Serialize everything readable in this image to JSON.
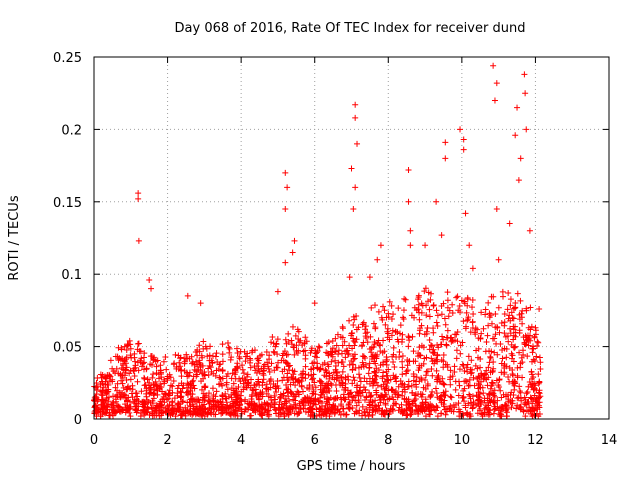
{
  "chart_data": {
    "type": "scatter",
    "title": "Day 068 of 2016, Rate Of TEC Index for receiver dund",
    "xlabel": "GPS time / hours",
    "ylabel": "ROTI / TECUs",
    "xlim": [
      0,
      14
    ],
    "ylim": [
      0,
      0.25
    ],
    "xticks": [
      "0",
      "2",
      "4",
      "6",
      "8",
      "10",
      "12",
      "14"
    ],
    "yticks": [
      "0",
      "0.05",
      "0.1",
      "0.15",
      "0.2",
      "0.25"
    ],
    "grid": true,
    "marker": "+",
    "series_color": "#ff0000",
    "notable_points": [
      {
        "x": 1.2,
        "y": 0.156
      },
      {
        "x": 1.2,
        "y": 0.152
      },
      {
        "x": 1.22,
        "y": 0.123
      },
      {
        "x": 1.5,
        "y": 0.096
      },
      {
        "x": 1.55,
        "y": 0.09
      },
      {
        "x": 2.55,
        "y": 0.085
      },
      {
        "x": 2.9,
        "y": 0.08
      },
      {
        "x": 5.0,
        "y": 0.088
      },
      {
        "x": 5.2,
        "y": 0.17
      },
      {
        "x": 5.25,
        "y": 0.16
      },
      {
        "x": 5.2,
        "y": 0.145
      },
      {
        "x": 5.45,
        "y": 0.123
      },
      {
        "x": 5.4,
        "y": 0.115
      },
      {
        "x": 5.2,
        "y": 0.108
      },
      {
        "x": 6.0,
        "y": 0.08
      },
      {
        "x": 6.95,
        "y": 0.098
      },
      {
        "x": 7.1,
        "y": 0.217
      },
      {
        "x": 7.1,
        "y": 0.208
      },
      {
        "x": 7.15,
        "y": 0.19
      },
      {
        "x": 7.0,
        "y": 0.173
      },
      {
        "x": 7.1,
        "y": 0.16
      },
      {
        "x": 7.05,
        "y": 0.145
      },
      {
        "x": 7.5,
        "y": 0.098
      },
      {
        "x": 7.8,
        "y": 0.12
      },
      {
        "x": 7.7,
        "y": 0.11
      },
      {
        "x": 8.55,
        "y": 0.172
      },
      {
        "x": 8.55,
        "y": 0.15
      },
      {
        "x": 8.6,
        "y": 0.13
      },
      {
        "x": 8.6,
        "y": 0.12
      },
      {
        "x": 9.0,
        "y": 0.12
      },
      {
        "x": 9.3,
        "y": 0.15
      },
      {
        "x": 9.45,
        "y": 0.127
      },
      {
        "x": 9.55,
        "y": 0.191
      },
      {
        "x": 9.55,
        "y": 0.18
      },
      {
        "x": 9.95,
        "y": 0.2
      },
      {
        "x": 10.05,
        "y": 0.193
      },
      {
        "x": 10.05,
        "y": 0.186
      },
      {
        "x": 10.1,
        "y": 0.142
      },
      {
        "x": 10.2,
        "y": 0.12
      },
      {
        "x": 10.3,
        "y": 0.104
      },
      {
        "x": 10.85,
        "y": 0.244
      },
      {
        "x": 10.95,
        "y": 0.232
      },
      {
        "x": 10.9,
        "y": 0.22
      },
      {
        "x": 10.95,
        "y": 0.145
      },
      {
        "x": 11.0,
        "y": 0.11
      },
      {
        "x": 11.3,
        "y": 0.135
      },
      {
        "x": 11.45,
        "y": 0.196
      },
      {
        "x": 11.5,
        "y": 0.215
      },
      {
        "x": 11.55,
        "y": 0.165
      },
      {
        "x": 11.6,
        "y": 0.18
      },
      {
        "x": 11.7,
        "y": 0.238
      },
      {
        "x": 11.72,
        "y": 0.225
      },
      {
        "x": 11.75,
        "y": 0.2
      },
      {
        "x": 11.85,
        "y": 0.13
      },
      {
        "x": 12.1,
        "y": 0.076
      }
    ],
    "activity_envelope": {
      "description": "approximate upper envelope of the dense point cloud (hours, ROTI)",
      "x": [
        0,
        0.5,
        1.0,
        1.5,
        2.0,
        2.5,
        3.0,
        3.5,
        4.0,
        4.5,
        5.0,
        5.5,
        6.0,
        6.5,
        7.0,
        7.5,
        8.0,
        8.5,
        9.0,
        9.5,
        10.0,
        10.5,
        11.0,
        11.5,
        12.0,
        12.15
      ],
      "upper": [
        0.025,
        0.04,
        0.06,
        0.045,
        0.04,
        0.045,
        0.055,
        0.05,
        0.05,
        0.045,
        0.06,
        0.065,
        0.05,
        0.055,
        0.07,
        0.075,
        0.08,
        0.085,
        0.09,
        0.085,
        0.09,
        0.08,
        0.085,
        0.09,
        0.07,
        0.04
      ],
      "lower": 0.004
    },
    "x_range_data": [
      0,
      12.15
    ]
  }
}
